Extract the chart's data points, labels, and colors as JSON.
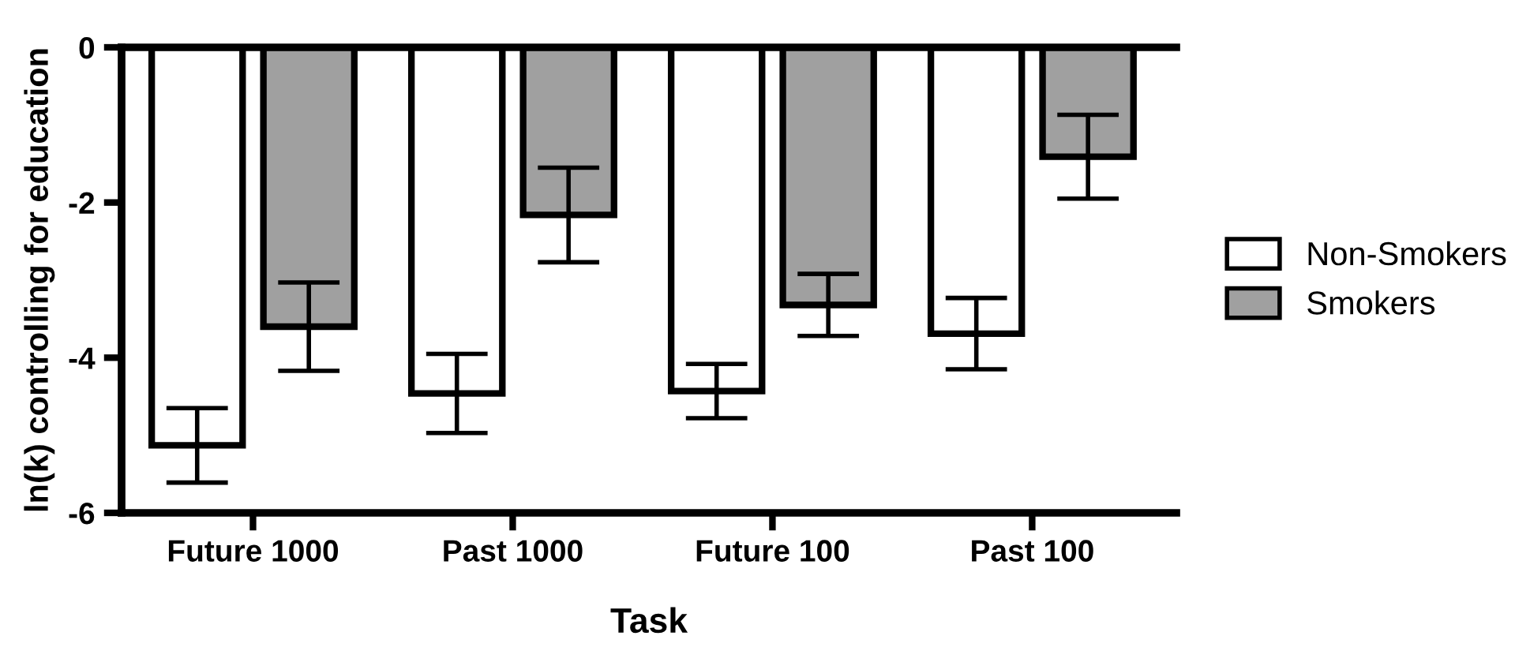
{
  "chart_data": {
    "type": "bar",
    "xlabel": "Task",
    "ylabel": "ln(k) controlling for education",
    "categories": [
      "Future 1000",
      "Past 1000",
      "Future 100",
      "Past 100"
    ],
    "series": [
      {
        "name": "Non-Smokers",
        "color": "#ffffff",
        "values": [
          -5.13,
          -4.46,
          -4.43,
          -3.69
        ],
        "errors": [
          0.48,
          0.51,
          0.35,
          0.46
        ]
      },
      {
        "name": "Smokers",
        "color": "#a0a0a0",
        "values": [
          -3.6,
          -2.16,
          -3.32,
          -1.41
        ],
        "errors": [
          0.57,
          0.61,
          0.4,
          0.54
        ]
      }
    ],
    "ylim": [
      -6,
      0
    ],
    "yticks": [
      -6,
      -4,
      -2,
      0
    ],
    "grid": false,
    "legend": "right"
  }
}
